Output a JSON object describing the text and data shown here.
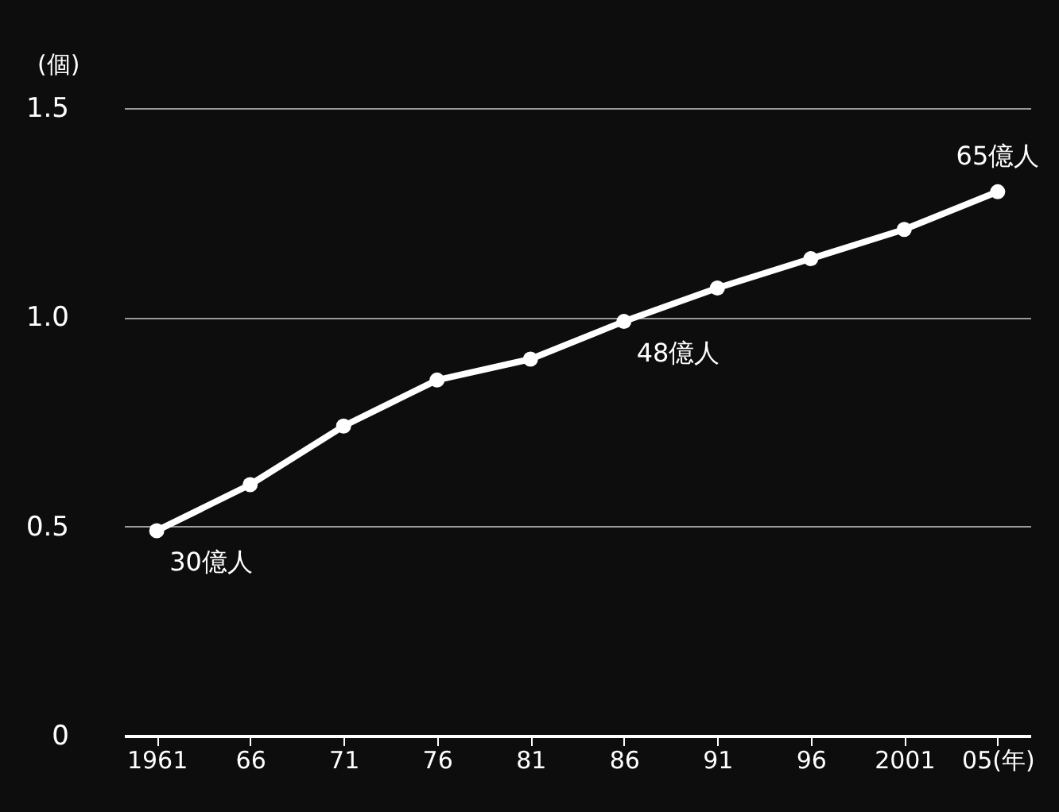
{
  "chart_data": {
    "type": "line",
    "ylabel": "(個)",
    "categories": [
      "1961",
      "66",
      "71",
      "76",
      "81",
      "86",
      "91",
      "96",
      "2001",
      "05(年)"
    ],
    "series": [
      {
        "color": "#ffffff",
        "values": [
          0.49,
          0.6,
          0.74,
          0.85,
          0.9,
          0.99,
          1.07,
          1.14,
          1.21,
          1.3
        ]
      }
    ],
    "ylim": [
      0,
      1.5
    ],
    "yticks": [
      0,
      0.5,
      {
        "value": 1,
        "label": "1.0"
      },
      1.5
    ],
    "grid": "y",
    "marker": "circle",
    "line_style": "solid",
    "annotations": [
      {
        "text": "30億人",
        "x": "1961",
        "y": 0.49
      },
      {
        "text": "48億人",
        "x": "86",
        "y": 0.99
      },
      {
        "text": "65億人",
        "x": "05(年)",
        "y": 1.3
      }
    ]
  }
}
